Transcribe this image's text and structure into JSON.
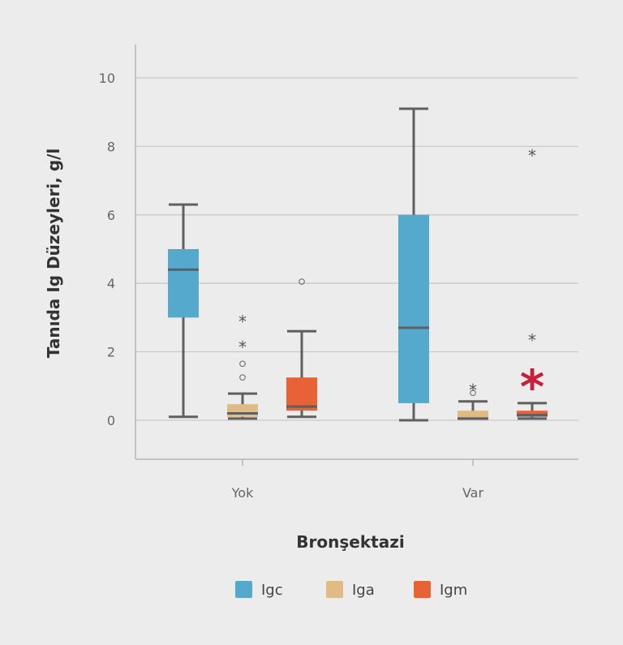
{
  "chart_data": {
    "type": "boxplot",
    "title": "",
    "xlabel": "Bronşektazi",
    "ylabel": "Tanıda Ig Düzeyleri, g/l",
    "ylim": [
      -1.1,
      10.9
    ],
    "yticks": [
      0,
      2,
      4,
      6,
      8,
      10
    ],
    "ytick_labels": [
      "0",
      "2",
      "4",
      "6",
      "8",
      "10"
    ],
    "grid": true,
    "categories": [
      "Yok",
      "Var"
    ],
    "legend": {
      "placement": "bottom",
      "entries": [
        "Igc",
        "Iga",
        "Igm"
      ]
    },
    "colors": {
      "Igc": "#54a9cd",
      "Iga": "#e0bb85",
      "Igm": "#e86236",
      "annotation": "#c8203c",
      "whisker": "#5f5f5f"
    },
    "series": [
      {
        "name": "Igc",
        "boxes": [
          {
            "category": "Yok",
            "min": 0.1,
            "q1": 3.0,
            "median": 4.4,
            "q3": 5.0,
            "max": 6.3,
            "outliers_circle": [],
            "outliers_star": []
          },
          {
            "category": "Var",
            "min": 0.0,
            "q1": 0.5,
            "median": 2.7,
            "q3": 6.0,
            "max": 9.1,
            "outliers_circle": [],
            "outliers_star": []
          }
        ]
      },
      {
        "name": "Iga",
        "boxes": [
          {
            "category": "Yok",
            "min": 0.05,
            "q1": 0.1,
            "median": 0.2,
            "q3": 0.47,
            "max": 0.78,
            "outliers_circle": [
              1.25,
              1.65
            ],
            "outliers_star": [
              2.2,
              2.95
            ]
          },
          {
            "category": "Var",
            "min": 0.05,
            "q1": 0.05,
            "median": 0.05,
            "q3": 0.28,
            "max": 0.55,
            "outliers_circle": [
              0.8
            ],
            "outliers_star": [
              0.95
            ]
          }
        ]
      },
      {
        "name": "Igm",
        "boxes": [
          {
            "category": "Yok",
            "min": 0.1,
            "q1": 0.28,
            "median": 0.4,
            "q3": 1.25,
            "max": 2.6,
            "outliers_circle": [
              4.05
            ],
            "outliers_star": []
          },
          {
            "category": "Var",
            "min": 0.05,
            "q1": 0.1,
            "median": 0.15,
            "q3": 0.28,
            "max": 0.5,
            "outliers_circle": [],
            "outliers_star": [
              2.4,
              7.8
            ]
          }
        ]
      }
    ],
    "annotations": [
      {
        "text": "*",
        "category": "Var",
        "series": "Igm",
        "y": 1.3
      }
    ]
  }
}
